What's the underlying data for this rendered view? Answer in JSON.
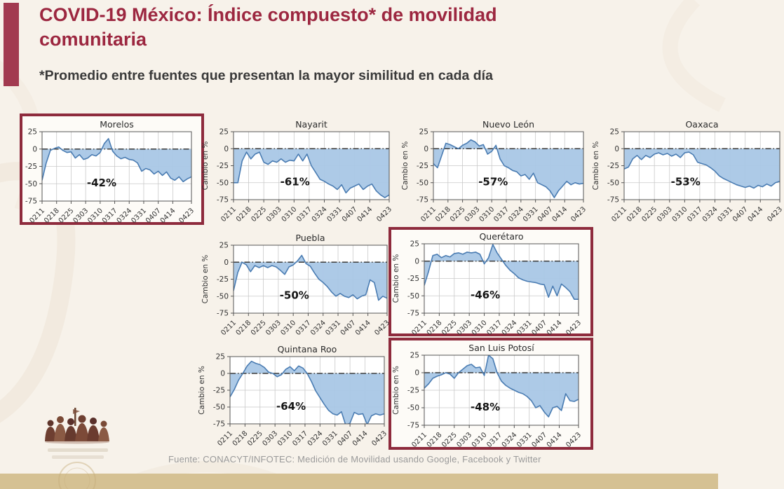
{
  "header": {
    "title_line1": "COVID-19 México: Índice compuesto* de movilidad",
    "title_line2": "comunitaria",
    "subtitle": "*Promedio entre fuentes que presentan la mayor similitud en cada día"
  },
  "footer": {
    "source": "Fuente: CONACYT/INFOTEC: Medición de Movilidad usando Google, Facebook y Twitter"
  },
  "colors": {
    "accent_bar": "#a23a50",
    "title_text": "#9c2740",
    "highlight_border": "#8e2b3d",
    "line": "#4a7cb2",
    "fill": "#a9c7e6",
    "zero_line": "#3a3a3a",
    "grid": "#c9c9c9",
    "axis_text": "#333333",
    "plot_bg": "#ffffff",
    "bottom_band": "#d5c193",
    "footer_text": "#9a9a9a"
  },
  "chart_data": {
    "type": "area",
    "ylabel": "Cambio en %",
    "ylim": [
      -75,
      25
    ],
    "y_ticks": [
      25,
      0,
      -25,
      -50,
      -75
    ],
    "x_tick_labels": [
      "0211",
      "0218",
      "0225",
      "0303",
      "0310",
      "0317",
      "0324",
      "0331",
      "0407",
      "0414",
      "0423"
    ],
    "x_tick_days": [
      0,
      7,
      14,
      21,
      28,
      35,
      42,
      49,
      56,
      63,
      72
    ],
    "x_step_days": 2,
    "x_max_day": 72,
    "grid": true,
    "charts": [
      {
        "title": "Morelos",
        "value_label": "-42%",
        "highlighted": true,
        "show_ylabel": false,
        "values": [
          -45,
          -20,
          -2,
          1,
          3,
          -2,
          -5,
          -4,
          -13,
          -8,
          -15,
          -13,
          -8,
          -10,
          -5,
          8,
          15,
          -3,
          -10,
          -14,
          -12,
          -15,
          -16,
          -20,
          -32,
          -28,
          -30,
          -36,
          -32,
          -38,
          -33,
          -42,
          -45,
          -40,
          -47,
          -43,
          -40
        ]
      },
      {
        "title": "Nayarit",
        "value_label": "-61%",
        "highlighted": false,
        "show_ylabel": true,
        "values": [
          -50,
          -50,
          -18,
          -5,
          -15,
          -8,
          -5,
          -20,
          -23,
          -18,
          -20,
          -15,
          -20,
          -17,
          -18,
          -8,
          -18,
          -8,
          -25,
          -35,
          -45,
          -48,
          -52,
          -55,
          -60,
          -53,
          -65,
          -58,
          -55,
          -52,
          -60,
          -55,
          -52,
          -62,
          -68,
          -72,
          -68
        ]
      },
      {
        "title": "Nuevo León",
        "value_label": "-57%",
        "highlighted": false,
        "show_ylabel": true,
        "values": [
          -22,
          -28,
          -10,
          8,
          6,
          3,
          0,
          5,
          8,
          13,
          10,
          4,
          6,
          -8,
          -4,
          5,
          -15,
          -25,
          -28,
          -32,
          -34,
          -40,
          -38,
          -45,
          -36,
          -50,
          -53,
          -56,
          -62,
          -72,
          -62,
          -55,
          -48,
          -53,
          -50,
          -52,
          -51
        ]
      },
      {
        "title": "Oaxaca",
        "value_label": "-53%",
        "highlighted": false,
        "show_ylabel": true,
        "values": [
          -30,
          -27,
          -15,
          -10,
          -16,
          -10,
          -13,
          -8,
          -6,
          -9,
          -7,
          -11,
          -8,
          -13,
          -6,
          -5,
          -9,
          -20,
          -22,
          -24,
          -28,
          -33,
          -40,
          -44,
          -47,
          -50,
          -53,
          -55,
          -57,
          -55,
          -58,
          -54,
          -56,
          -52,
          -55,
          -50,
          -48
        ]
      },
      {
        "title": "Puebla",
        "value_label": "-50%",
        "highlighted": false,
        "show_ylabel": true,
        "values": [
          -42,
          -15,
          0,
          -4,
          -14,
          -5,
          -8,
          -5,
          -8,
          -5,
          -7,
          -12,
          -18,
          -7,
          -4,
          2,
          10,
          -2,
          -6,
          -16,
          -25,
          -30,
          -36,
          -44,
          -50,
          -46,
          -50,
          -52,
          -48,
          -54,
          -50,
          -48,
          -26,
          -30,
          -56,
          -50,
          -53
        ]
      },
      {
        "title": "Querétaro",
        "value_label": "-46%",
        "highlighted": true,
        "show_ylabel": true,
        "values": [
          -35,
          -15,
          8,
          10,
          5,
          8,
          6,
          11,
          12,
          10,
          13,
          12,
          13,
          10,
          -4,
          5,
          24,
          12,
          3,
          -6,
          -13,
          -18,
          -24,
          -27,
          -29,
          -30,
          -31,
          -33,
          -34,
          -52,
          -36,
          -50,
          -33,
          -38,
          -44,
          -55,
          -55
        ]
      },
      {
        "title": "Quintana Roo",
        "value_label": "-64%",
        "highlighted": false,
        "show_ylabel": true,
        "values": [
          -35,
          -24,
          -10,
          0,
          11,
          18,
          15,
          13,
          9,
          2,
          0,
          -5,
          -2,
          6,
          10,
          4,
          11,
          8,
          0,
          -12,
          -26,
          -36,
          -46,
          -55,
          -60,
          -62,
          -57,
          -77,
          -74,
          -58,
          -61,
          -60,
          -76,
          -63,
          -60,
          -62,
          -60
        ]
      },
      {
        "title": "San Luis Potosí",
        "value_label": "-48%",
        "highlighted": true,
        "show_ylabel": true,
        "values": [
          -22,
          -16,
          -8,
          -5,
          -3,
          0,
          -2,
          -8,
          0,
          5,
          10,
          12,
          7,
          8,
          -4,
          25,
          20,
          0,
          -12,
          -18,
          -22,
          -25,
          -28,
          -30,
          -34,
          -40,
          -50,
          -47,
          -56,
          -63,
          -50,
          -48,
          -54,
          -30,
          -40,
          -41,
          -38
        ]
      }
    ]
  }
}
